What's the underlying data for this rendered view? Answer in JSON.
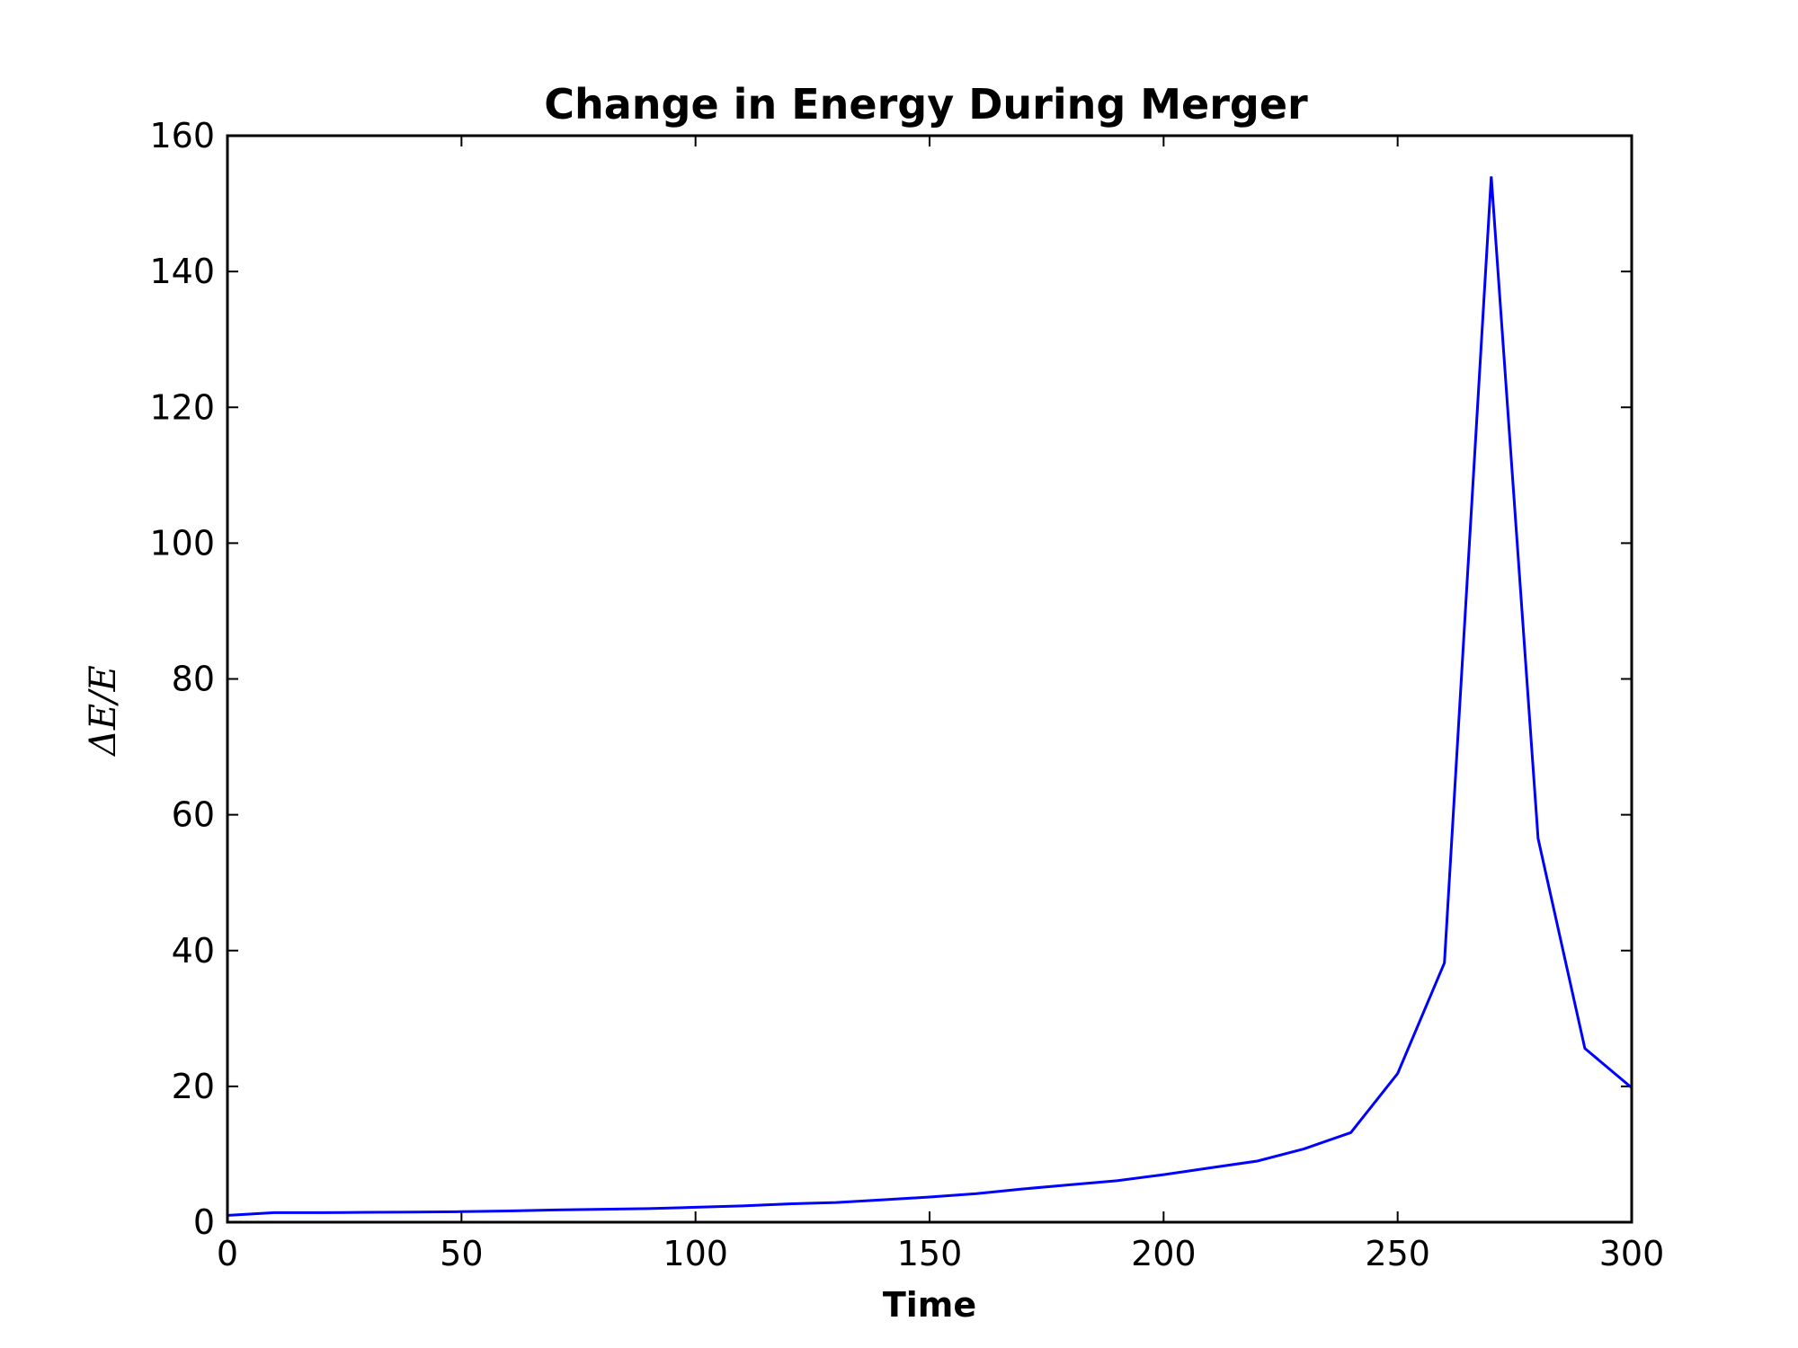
{
  "chart_data": {
    "type": "line",
    "title": "Change in Energy During Merger",
    "xlabel": "Time",
    "ylabel": "ΔE/E",
    "xlim": [
      0,
      300
    ],
    "ylim": [
      0,
      160
    ],
    "xticks": [
      "0",
      "50",
      "100",
      "150",
      "200",
      "250",
      "300"
    ],
    "yticks": [
      "0",
      "20",
      "40",
      "60",
      "80",
      "100",
      "120",
      "140",
      "160"
    ],
    "grid": false,
    "legend": "none",
    "series": [
      {
        "color": "#0000ff",
        "x": [
          0,
          10,
          20,
          30,
          40,
          50,
          60,
          70,
          80,
          90,
          100,
          110,
          120,
          130,
          140,
          150,
          160,
          170,
          180,
          190,
          200,
          210,
          220,
          230,
          240,
          250,
          260,
          270,
          280,
          290,
          300
        ],
        "y": [
          1.0,
          1.4,
          1.4,
          1.45,
          1.5,
          1.55,
          1.65,
          1.8,
          1.9,
          2.0,
          2.2,
          2.4,
          2.7,
          2.9,
          3.3,
          3.7,
          4.2,
          4.9,
          5.5,
          6.1,
          7.0,
          8.0,
          9.0,
          10.8,
          13.2,
          21.9,
          38.2,
          154.0,
          56.5,
          25.6,
          19.8
        ]
      }
    ]
  }
}
